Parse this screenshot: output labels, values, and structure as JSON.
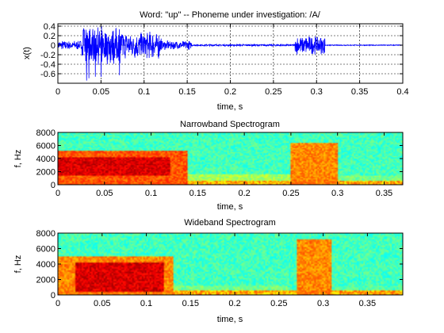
{
  "chart_data": [
    {
      "type": "line",
      "title": "Word: \"up\" --  Phoneme under investigation: /A/",
      "xlabel": "time, s",
      "ylabel": "x(t)",
      "xlim": [
        0,
        0.4
      ],
      "ylim": [
        -0.8,
        0.45
      ],
      "grid": true,
      "line_color": "#0000ff",
      "x_ticks": [
        0,
        0.05,
        0.1,
        0.15,
        0.2,
        0.25,
        0.3,
        0.35,
        0.4
      ],
      "x_tick_labels": [
        "0",
        "0.05",
        "0.1",
        "0.15",
        "0.2",
        "0.25",
        "0.3",
        "0.35",
        "0.4"
      ],
      "y_ticks": [
        0.4,
        0.2,
        0,
        -0.2,
        -0.4,
        -0.6
      ],
      "y_tick_labels": [
        "0.4",
        "0.2",
        "0",
        "-0.2",
        "-0.4",
        "-0.6"
      ],
      "bursts": [
        {
          "start": 0.0,
          "end": 0.028,
          "amplitude": 0.1
        },
        {
          "start": 0.028,
          "end": 0.075,
          "amplitude": 0.42
        },
        {
          "start": 0.075,
          "end": 0.12,
          "amplitude": 0.3
        },
        {
          "start": 0.12,
          "end": 0.155,
          "amplitude": 0.1
        },
        {
          "start": 0.155,
          "end": 0.275,
          "amplitude": 0.02
        },
        {
          "start": 0.275,
          "end": 0.31,
          "amplitude": 0.2
        },
        {
          "start": 0.31,
          "end": 0.4,
          "amplitude": 0.01
        }
      ],
      "min_value": -0.75
    },
    {
      "type": "heatmap",
      "title": "Narrowband Spectrogram",
      "xlabel": "time, s",
      "ylabel": "f, Hz",
      "xlim": [
        0,
        0.37
      ],
      "ylim": [
        0,
        8000
      ],
      "x_ticks": [
        0,
        0.05,
        0.1,
        0.15,
        0.2,
        0.25,
        0.3,
        0.35
      ],
      "x_tick_labels": [
        "0",
        "0.05",
        "0.1",
        "0.15",
        "0.2",
        "0.25",
        "0.3",
        "0.35"
      ],
      "y_ticks": [
        8000,
        6000,
        4000,
        2000,
        0
      ],
      "y_tick_labels": [
        "8000",
        "6000",
        "4000",
        "2000",
        "0"
      ],
      "colormap": "jet",
      "energy_regions": [
        {
          "t0": 0.0,
          "t1": 0.14,
          "f0": 0,
          "f1": 5200,
          "level": 0.85
        },
        {
          "t0": 0.0,
          "t1": 0.12,
          "f0": 1500,
          "f1": 4200,
          "level": 0.97
        },
        {
          "t0": 0.14,
          "t1": 0.25,
          "f0": 0,
          "f1": 1600,
          "level": 0.6
        },
        {
          "t0": 0.25,
          "t1": 0.3,
          "f0": 0,
          "f1": 6500,
          "level": 0.8
        },
        {
          "t0": 0.3,
          "t1": 0.37,
          "f0": 0,
          "f1": 1500,
          "level": 0.55
        }
      ]
    },
    {
      "type": "heatmap",
      "title": "Wideband Spectrogram",
      "xlabel": "time, s",
      "ylabel": "f, Hz",
      "xlim": [
        0,
        0.39
      ],
      "ylim": [
        0,
        8000
      ],
      "x_ticks": [
        0,
        0.05,
        0.1,
        0.15,
        0.2,
        0.25,
        0.3,
        0.35
      ],
      "x_tick_labels": [
        "0",
        "0.05",
        "0.1",
        "0.15",
        "0.2",
        "0.25",
        "0.3",
        "0.35"
      ],
      "y_ticks": [
        8000,
        6000,
        4000,
        2000,
        0
      ],
      "y_tick_labels": [
        "8000",
        "6000",
        "4000",
        "2000",
        "0"
      ],
      "colormap": "jet",
      "energy_regions": [
        {
          "t0": 0.0,
          "t1": 0.13,
          "f0": 0,
          "f1": 5000,
          "level": 0.8
        },
        {
          "t0": 0.02,
          "t1": 0.12,
          "f0": 400,
          "f1": 4200,
          "level": 0.97
        },
        {
          "t0": 0.13,
          "t1": 0.26,
          "f0": 0,
          "f1": 1200,
          "level": 0.55
        },
        {
          "t0": 0.27,
          "t1": 0.31,
          "f0": 0,
          "f1": 7200,
          "level": 0.8
        },
        {
          "t0": 0.31,
          "t1": 0.39,
          "f0": 0,
          "f1": 1200,
          "level": 0.5
        }
      ]
    }
  ]
}
